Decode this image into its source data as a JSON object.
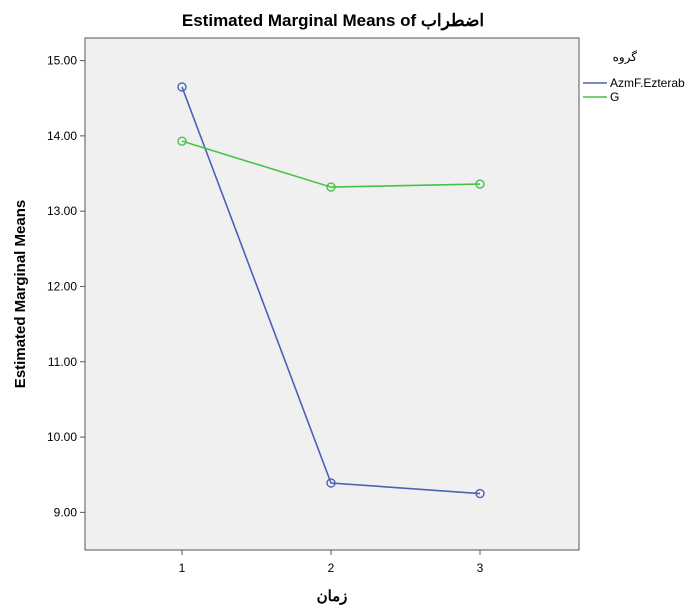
{
  "chart_data": {
    "type": "line",
    "title": "Estimated Marginal Means of اضطراب",
    "xlabel": "زمان",
    "ylabel": "Estimated Marginal Means",
    "categories": [
      "1",
      "2",
      "3"
    ],
    "ylim": [
      8.5,
      15.3
    ],
    "yticks": [
      "9.00",
      "10.00",
      "11.00",
      "12.00",
      "13.00",
      "14.00",
      "15.00"
    ],
    "grid": false,
    "legend_title": "گروه",
    "legend_position": "right",
    "series": [
      {
        "name": "AzmF.Ezterab",
        "color": "#4a64b4",
        "values": [
          14.65,
          9.39,
          9.25
        ]
      },
      {
        "name": "G",
        "color": "#47c247",
        "values": [
          13.93,
          13.32,
          13.36
        ]
      }
    ]
  }
}
